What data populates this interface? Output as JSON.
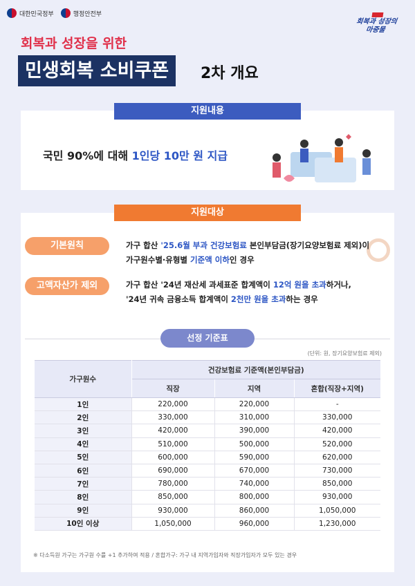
{
  "header": {
    "gov": [
      "대한민국정부",
      "행정안전부"
    ],
    "campaign_logo": "회복과 성장의 마중물",
    "subtitle": "회복과 성장을 위한",
    "title": "민생회복 소비쿠폰",
    "title_suffix": "2차 개요"
  },
  "support": {
    "heading": "지원내용",
    "text_pre": "국민 90%에 대해 ",
    "text_highlight": "1인당 10만 원 지급"
  },
  "target": {
    "heading": "지원대상",
    "basic": {
      "label": "기본원칙",
      "l1a": "가구 합산 ",
      "l1b": "'25.6월 부과 건강보험료",
      "l1c": " 본인부담금(장기요양보험료 제외)이",
      "l2a": "가구원수별·유형별 ",
      "l2b": "기준액 이하",
      "l2c": "인 경우"
    },
    "exclude": {
      "label": "고액자산가 제외",
      "l1a": "가구 합산 '24년 재산세 과세표준 합계액이 ",
      "l1b": "12억 원을 초과",
      "l1c": "하거나,",
      "l2a": "'24년 귀속 금융소득 합계액이 ",
      "l2b": "2천만 원을 초과",
      "l2c": "하는 경우"
    }
  },
  "table": {
    "title": "선정 기준표",
    "unit": "(단위: 원, 장기요양보험료 제외)",
    "col_household": "가구원수",
    "col_group": "건강보험료 기준액(본인부담금)",
    "cols": [
      "직장",
      "지역",
      "혼합(직장+지역)"
    ],
    "rows": [
      [
        "1인",
        "220,000",
        "220,000",
        "-"
      ],
      [
        "2인",
        "330,000",
        "310,000",
        "330,000"
      ],
      [
        "3인",
        "420,000",
        "390,000",
        "420,000"
      ],
      [
        "4인",
        "510,000",
        "500,000",
        "520,000"
      ],
      [
        "5인",
        "600,000",
        "590,000",
        "620,000"
      ],
      [
        "6인",
        "690,000",
        "670,000",
        "730,000"
      ],
      [
        "7인",
        "780,000",
        "740,000",
        "850,000"
      ],
      [
        "8인",
        "850,000",
        "800,000",
        "930,000"
      ],
      [
        "9인",
        "930,000",
        "860,000",
        "1,050,000"
      ],
      [
        "10인 이상",
        "1,050,000",
        "960,000",
        "1,230,000"
      ]
    ]
  },
  "note": "※ 다소득원 가구는 가구원 수를 +1 추가하여 적용 / 혼합가구: 가구 내 지역가입자와 직장가입자가 모두 있는 경우"
}
